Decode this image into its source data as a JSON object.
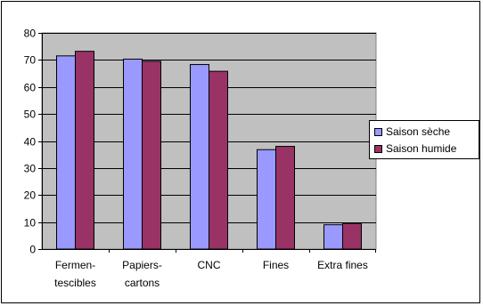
{
  "chart_data": {
    "type": "bar",
    "categories": [
      [
        "Fermen-",
        "tescibles"
      ],
      [
        "Papiers-",
        "cartons"
      ],
      [
        "CNC"
      ],
      [
        "Fines"
      ],
      [
        "Extra fines"
      ]
    ],
    "series": [
      {
        "name": "Saison sèche",
        "values": [
          71.5,
          70.3,
          68.3,
          36.8,
          9.0
        ],
        "color": "#9999ff"
      },
      {
        "name": "Saison humide",
        "values": [
          73.2,
          69.5,
          65.8,
          38.0,
          9.5
        ],
        "color": "#993366"
      }
    ],
    "ylim": [
      0,
      80
    ],
    "yticks": [
      0,
      10,
      20,
      30,
      40,
      50,
      60,
      70,
      80
    ],
    "grid": true,
    "plot_background": "#c0c0c0",
    "legend_position": "right"
  }
}
